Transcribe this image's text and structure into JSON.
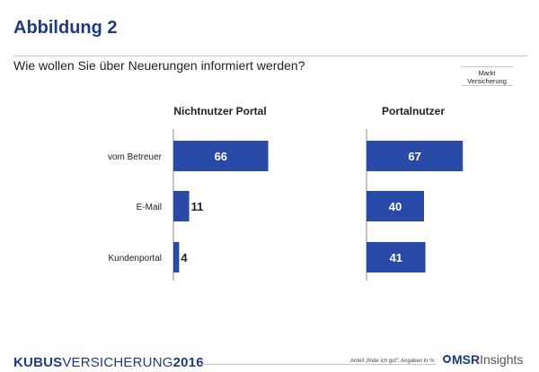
{
  "header": {
    "title": "Abbildung 2",
    "question": "Wie wollen Sie über Neuerungen informiert werden?",
    "badge_line1": "Markt",
    "badge_line2": "Versicherung"
  },
  "footer": {
    "brand_bold": "KUBUS",
    "brand_light": "VERSICHERUNG",
    "brand_year": "2016",
    "note": "Anteil „finde ich gut\"; Angaben in %",
    "logo_bold": "MSR",
    "logo_light": "Insights"
  },
  "colors": {
    "bar": "#2a4aa8",
    "title": "#1e3a82"
  },
  "chart_data": [
    {
      "type": "bar",
      "orientation": "horizontal",
      "title": "Nichtnutzer Portal",
      "categories": [
        "vom Betreuer",
        "E-Mail",
        "Kundenportal"
      ],
      "values": [
        66,
        11,
        4
      ],
      "xlim": [
        0,
        100
      ]
    },
    {
      "type": "bar",
      "orientation": "horizontal",
      "title": "Portalnutzer",
      "categories": [
        "vom Betreuer",
        "E-Mail",
        "Kundenportal"
      ],
      "values": [
        67,
        40,
        41
      ],
      "xlim": [
        0,
        100
      ]
    }
  ]
}
